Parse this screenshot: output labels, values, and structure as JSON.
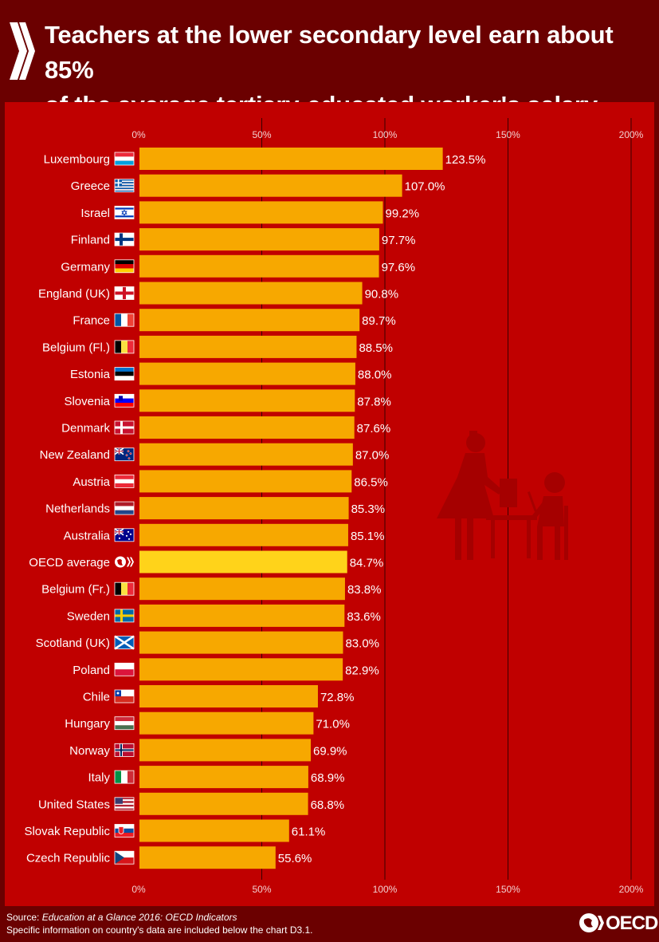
{
  "header": {
    "title_line1": "Teachers at the lower secondary level earn about 85%",
    "title_line2": "of the average tertiary-educated worker's salary"
  },
  "footer": {
    "source_label": "Source: ",
    "source_title": "Education at a Glance 2016: OECD Indicators",
    "note": "Specific information on country's data are included below the chart D3.1.",
    "logo_text": "OECD"
  },
  "colors": {
    "bar": "#f7a800",
    "highlight_bar": "#ffd31a",
    "background": "#c00000",
    "frame": "#6b0000"
  },
  "chart_data": {
    "type": "bar",
    "orientation": "horizontal",
    "title": "Teachers at the lower secondary level earn about 85% of the average tertiary-educated worker's salary",
    "xlim": [
      0,
      200
    ],
    "ticks": [
      "0%",
      "50%",
      "100%",
      "150%",
      "200%"
    ],
    "tick_values": [
      0,
      50,
      100,
      150,
      200
    ],
    "highlight": "OECD average",
    "categories": [
      {
        "name": "Luxembourg",
        "value": 123.5,
        "label": "123.5%",
        "flag": "luxembourg-flag-icon"
      },
      {
        "name": "Greece",
        "value": 107.0,
        "label": "107.0%",
        "flag": "greece-flag-icon"
      },
      {
        "name": "Israel",
        "value": 99.2,
        "label": "99.2%",
        "flag": "israel-flag-icon"
      },
      {
        "name": "Finland",
        "value": 97.7,
        "label": "97.7%",
        "flag": "finland-flag-icon"
      },
      {
        "name": "Germany",
        "value": 97.6,
        "label": "97.6%",
        "flag": "germany-flag-icon"
      },
      {
        "name": "England (UK)",
        "value": 90.8,
        "label": "90.8%",
        "flag": "england-flag-icon"
      },
      {
        "name": "France",
        "value": 89.7,
        "label": "89.7%",
        "flag": "france-flag-icon"
      },
      {
        "name": "Belgium (Fl.)",
        "value": 88.5,
        "label": "88.5%",
        "flag": "belgium-flag-icon"
      },
      {
        "name": "Estonia",
        "value": 88.0,
        "label": "88.0%",
        "flag": "estonia-flag-icon"
      },
      {
        "name": "Slovenia",
        "value": 87.8,
        "label": "87.8%",
        "flag": "slovenia-flag-icon"
      },
      {
        "name": "Denmark",
        "value": 87.6,
        "label": "87.6%",
        "flag": "denmark-flag-icon"
      },
      {
        "name": "New Zealand",
        "value": 87.0,
        "label": "87.0%",
        "flag": "new-zealand-flag-icon"
      },
      {
        "name": "Austria",
        "value": 86.5,
        "label": "86.5%",
        "flag": "austria-flag-icon"
      },
      {
        "name": "Netherlands",
        "value": 85.3,
        "label": "85.3%",
        "flag": "netherlands-flag-icon"
      },
      {
        "name": "Australia",
        "value": 85.1,
        "label": "85.1%",
        "flag": "australia-flag-icon"
      },
      {
        "name": "OECD average",
        "value": 84.7,
        "label": "84.7%",
        "flag": "oecd-logo-icon"
      },
      {
        "name": "Belgium (Fr.)",
        "value": 83.8,
        "label": "83.8%",
        "flag": "belgium-flag-icon"
      },
      {
        "name": "Sweden",
        "value": 83.6,
        "label": "83.6%",
        "flag": "sweden-flag-icon"
      },
      {
        "name": "Scotland (UK)",
        "value": 83.0,
        "label": "83.0%",
        "flag": "scotland-flag-icon"
      },
      {
        "name": "Poland",
        "value": 82.9,
        "label": "82.9%",
        "flag": "poland-flag-icon"
      },
      {
        "name": "Chile",
        "value": 72.8,
        "label": "72.8%",
        "flag": "chile-flag-icon"
      },
      {
        "name": "Hungary",
        "value": 71.0,
        "label": "71.0%",
        "flag": "hungary-flag-icon"
      },
      {
        "name": "Norway",
        "value": 69.9,
        "label": "69.9%",
        "flag": "norway-flag-icon"
      },
      {
        "name": "Italy",
        "value": 68.9,
        "label": "68.9%",
        "flag": "italy-flag-icon"
      },
      {
        "name": "United States",
        "value": 68.8,
        "label": "68.8%",
        "flag": "united-states-flag-icon"
      },
      {
        "name": "Slovak Republic",
        "value": 61.1,
        "label": "61.1%",
        "flag": "slovakia-flag-icon"
      },
      {
        "name": "Czech Republic",
        "value": 55.6,
        "label": "55.6%",
        "flag": "czech-flag-icon"
      }
    ]
  }
}
